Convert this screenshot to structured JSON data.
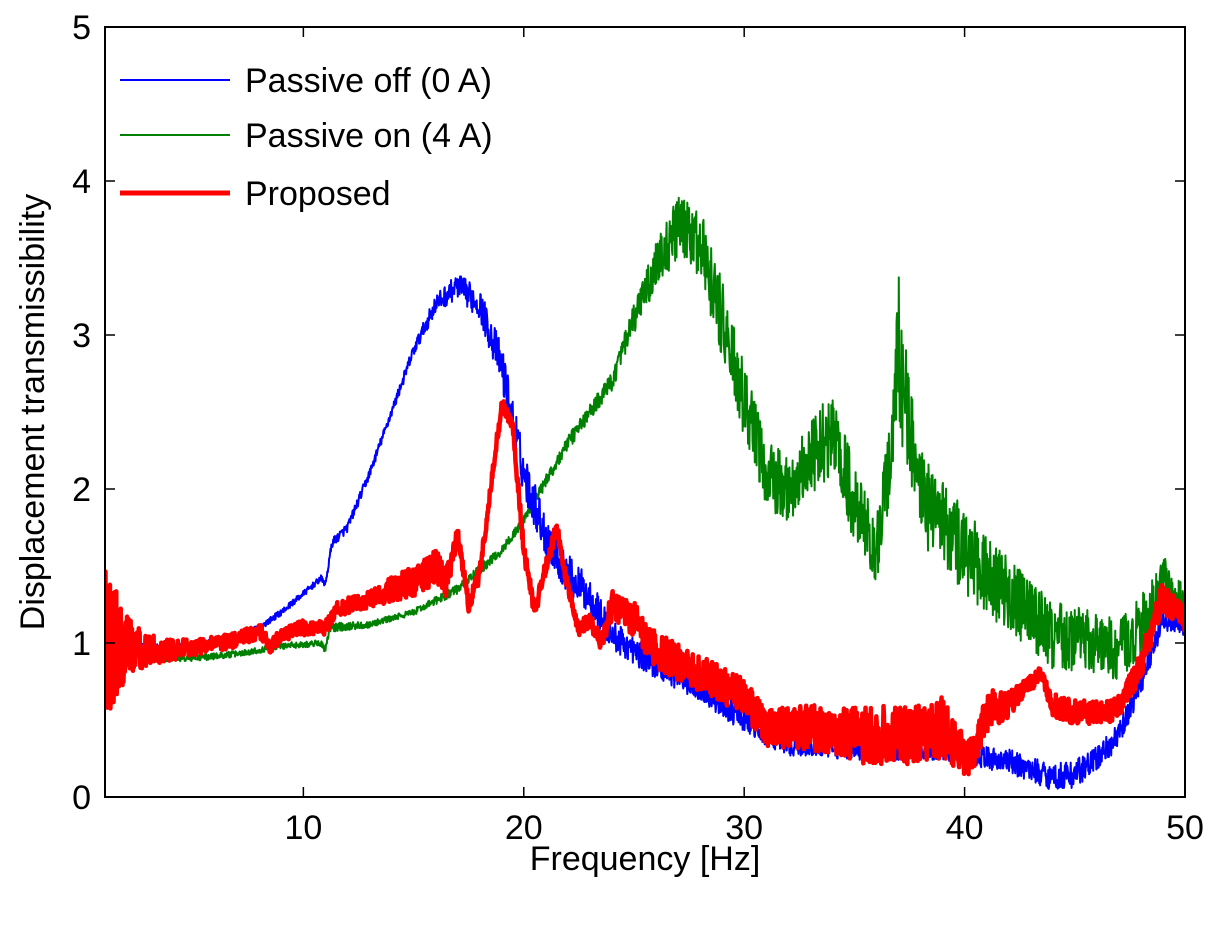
{
  "chart_data": {
    "type": "line",
    "title": "",
    "xlabel": "Frequency [Hz]",
    "ylabel": "Displacement transmissibility",
    "xlim": [
      1,
      50
    ],
    "ylim": [
      0,
      5
    ],
    "xticks": [
      10,
      20,
      30,
      40,
      50
    ],
    "xtick_labels": [
      "10",
      "20",
      "30",
      "40",
      "50"
    ],
    "yticks": [
      0,
      1,
      2,
      3,
      4,
      5
    ],
    "ytick_labels": [
      "0",
      "1",
      "2",
      "3",
      "4",
      "5"
    ],
    "grid": false,
    "legend": {
      "position": "top-left",
      "entries": [
        {
          "label": "Passive off (0 A)",
          "color": "#0000ff"
        },
        {
          "label": "Passive on (4 A)",
          "color": "#008000"
        },
        {
          "label": "Proposed",
          "color": "#ff0000"
        }
      ]
    },
    "series": [
      {
        "name": "Passive off (0 A)",
        "color": "#0000ff",
        "points": [
          [
            1,
            1.0,
            0.05
          ],
          [
            3,
            0.97,
            0.02
          ],
          [
            5,
            0.98,
            0.02
          ],
          [
            7,
            1.04,
            0.02
          ],
          [
            8,
            1.1,
            0.02
          ],
          [
            9,
            1.2,
            0.02
          ],
          [
            10,
            1.32,
            0.02
          ],
          [
            10.8,
            1.42,
            0.02
          ],
          [
            11,
            1.38,
            0.02
          ],
          [
            11.3,
            1.65,
            0.03
          ],
          [
            12,
            1.75,
            0.03
          ],
          [
            13,
            2.1,
            0.03
          ],
          [
            14,
            2.5,
            0.03
          ],
          [
            15,
            2.9,
            0.04
          ],
          [
            16,
            3.2,
            0.06
          ],
          [
            17,
            3.32,
            0.08
          ],
          [
            18,
            3.2,
            0.1
          ],
          [
            19,
            2.8,
            0.14
          ],
          [
            20,
            2.1,
            0.15
          ],
          [
            21,
            1.7,
            0.14
          ],
          [
            22,
            1.45,
            0.13
          ],
          [
            23,
            1.3,
            0.12
          ],
          [
            24,
            1.05,
            0.1
          ],
          [
            26,
            0.85,
            0.08
          ],
          [
            28,
            0.7,
            0.08
          ],
          [
            30,
            0.5,
            0.08
          ],
          [
            31,
            0.4,
            0.07
          ],
          [
            32,
            0.33,
            0.06
          ],
          [
            35,
            0.3,
            0.06
          ],
          [
            38,
            0.3,
            0.06
          ],
          [
            40,
            0.28,
            0.07
          ],
          [
            42,
            0.23,
            0.08
          ],
          [
            43,
            0.18,
            0.08
          ],
          [
            44,
            0.13,
            0.09
          ],
          [
            45,
            0.15,
            0.09
          ],
          [
            46,
            0.25,
            0.08
          ],
          [
            47,
            0.4,
            0.08
          ],
          [
            48,
            0.75,
            0.08
          ],
          [
            49,
            1.15,
            0.07
          ],
          [
            50,
            1.1,
            0.05
          ]
        ]
      },
      {
        "name": "Passive on (4 A)",
        "color": "#008000",
        "points": [
          [
            1,
            1.0,
            0.05
          ],
          [
            3,
            0.9,
            0.02
          ],
          [
            5,
            0.9,
            0.02
          ],
          [
            7,
            0.93,
            0.02
          ],
          [
            9,
            0.98,
            0.02
          ],
          [
            10.8,
            1.0,
            0.02
          ],
          [
            11,
            0.95,
            0.02
          ],
          [
            11.2,
            1.1,
            0.03
          ],
          [
            13,
            1.12,
            0.02
          ],
          [
            15,
            1.2,
            0.02
          ],
          [
            17,
            1.35,
            0.03
          ],
          [
            19,
            1.6,
            0.03
          ],
          [
            20,
            1.8,
            0.03
          ],
          [
            21,
            2.05,
            0.04
          ],
          [
            22,
            2.3,
            0.05
          ],
          [
            23,
            2.5,
            0.05
          ],
          [
            24,
            2.7,
            0.06
          ],
          [
            25,
            3.1,
            0.1
          ],
          [
            26,
            3.45,
            0.15
          ],
          [
            27,
            3.7,
            0.2
          ],
          [
            28,
            3.6,
            0.22
          ],
          [
            29,
            3.1,
            0.25
          ],
          [
            30,
            2.55,
            0.25
          ],
          [
            31,
            2.1,
            0.22
          ],
          [
            32,
            2.0,
            0.22
          ],
          [
            33,
            2.2,
            0.25
          ],
          [
            34,
            2.35,
            0.3
          ],
          [
            35,
            1.9,
            0.25
          ],
          [
            36,
            1.6,
            0.22
          ],
          [
            36.8,
            2.4,
            0.3
          ],
          [
            37,
            2.9,
            0.5
          ],
          [
            37.5,
            2.4,
            0.35
          ],
          [
            38,
            1.95,
            0.3
          ],
          [
            40,
            1.6,
            0.28
          ],
          [
            42,
            1.3,
            0.25
          ],
          [
            44,
            1.05,
            0.22
          ],
          [
            46,
            1.0,
            0.2
          ],
          [
            47,
            0.95,
            0.2
          ],
          [
            48,
            1.1,
            0.2
          ],
          [
            49,
            1.4,
            0.2
          ],
          [
            50,
            1.2,
            0.15
          ]
        ]
      },
      {
        "name": "Proposed",
        "color": "#ff0000",
        "points": [
          [
            1,
            1.0,
            0.5
          ],
          [
            2,
            0.98,
            0.2
          ],
          [
            3,
            0.95,
            0.1
          ],
          [
            5,
            0.97,
            0.05
          ],
          [
            7,
            1.02,
            0.05
          ],
          [
            8,
            1.08,
            0.05
          ],
          [
            8.5,
            0.98,
            0.05
          ],
          [
            9,
            1.05,
            0.04
          ],
          [
            10,
            1.1,
            0.05
          ],
          [
            11,
            1.1,
            0.05
          ],
          [
            11.5,
            1.22,
            0.05
          ],
          [
            13,
            1.28,
            0.06
          ],
          [
            14,
            1.35,
            0.08
          ],
          [
            15,
            1.4,
            0.1
          ],
          [
            16,
            1.5,
            0.12
          ],
          [
            16.5,
            1.4,
            0.1
          ],
          [
            17,
            1.7,
            0.06
          ],
          [
            17.5,
            1.25,
            0.05
          ],
          [
            18,
            1.45,
            0.05
          ],
          [
            18.5,
            2.0,
            0.05
          ],
          [
            19,
            2.55,
            0.06
          ],
          [
            19.5,
            2.4,
            0.05
          ],
          [
            20,
            1.6,
            0.05
          ],
          [
            20.5,
            1.2,
            0.05
          ],
          [
            21,
            1.5,
            0.05
          ],
          [
            21.5,
            1.75,
            0.05
          ],
          [
            22,
            1.35,
            0.05
          ],
          [
            22.5,
            1.1,
            0.05
          ],
          [
            23,
            1.15,
            0.05
          ],
          [
            23.5,
            1.0,
            0.05
          ],
          [
            24,
            1.25,
            0.1
          ],
          [
            25,
            1.15,
            0.12
          ],
          [
            26,
            0.95,
            0.12
          ],
          [
            28,
            0.8,
            0.12
          ],
          [
            30,
            0.65,
            0.12
          ],
          [
            31,
            0.45,
            0.12
          ],
          [
            33,
            0.45,
            0.15
          ],
          [
            35,
            0.4,
            0.18
          ],
          [
            37,
            0.4,
            0.2
          ],
          [
            39,
            0.45,
            0.2
          ],
          [
            40,
            0.25,
            0.15
          ],
          [
            40.5,
            0.3,
            0.1
          ],
          [
            41,
            0.55,
            0.15
          ],
          [
            42,
            0.6,
            0.08
          ],
          [
            43,
            0.75,
            0.06
          ],
          [
            43.5,
            0.8,
            0.05
          ],
          [
            44,
            0.6,
            0.08
          ],
          [
            45,
            0.55,
            0.08
          ],
          [
            46,
            0.55,
            0.08
          ],
          [
            47,
            0.58,
            0.08
          ],
          [
            48,
            0.85,
            0.1
          ],
          [
            48.5,
            1.1,
            0.1
          ],
          [
            49,
            1.3,
            0.1
          ],
          [
            50,
            1.15,
            0.08
          ]
        ]
      }
    ]
  }
}
